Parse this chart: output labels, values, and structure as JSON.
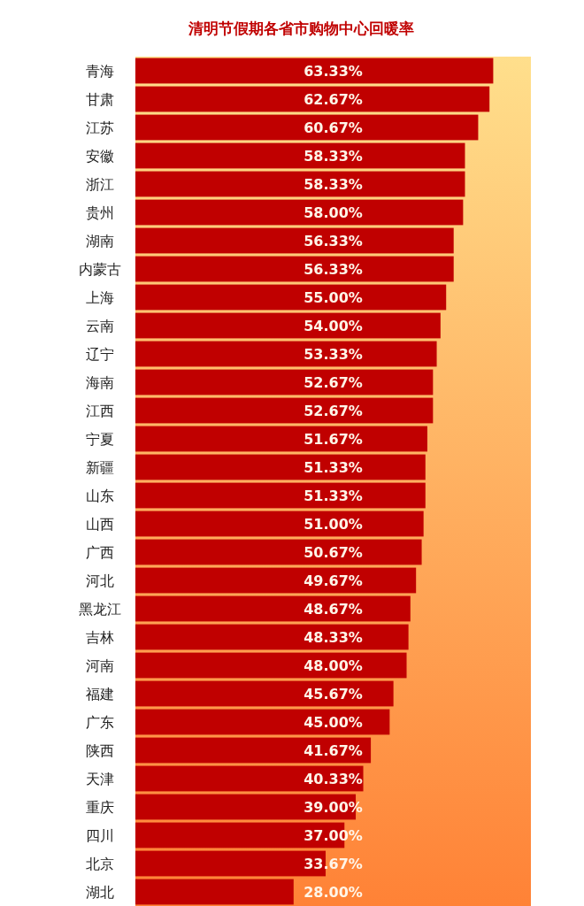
{
  "chart_data": {
    "type": "bar",
    "orientation": "horizontal",
    "title": "清明节假期各省市购物中心回暖率",
    "categories": [
      "青海",
      "甘肃",
      "江苏",
      "安徽",
      "浙江",
      "贵州",
      "湖南",
      "内蒙古",
      "上海",
      "云南",
      "辽宁",
      "海南",
      "江西",
      "宁夏",
      "新疆",
      "山东",
      "山西",
      "广西",
      "河北",
      "黑龙江",
      "吉林",
      "河南",
      "福建",
      "广东",
      "陕西",
      "天津",
      "重庆",
      "四川",
      "北京",
      "湖北"
    ],
    "values": [
      63.33,
      62.67,
      60.67,
      58.33,
      58.33,
      58.0,
      56.33,
      56.33,
      55.0,
      54.0,
      53.33,
      52.67,
      52.67,
      51.67,
      51.33,
      51.33,
      51.0,
      50.67,
      49.67,
      48.67,
      48.33,
      48.0,
      45.67,
      45.0,
      41.67,
      40.33,
      39.0,
      37.0,
      33.67,
      28.0
    ],
    "value_labels": [
      "63.33%",
      "62.67%",
      "60.67%",
      "58.33%",
      "58.33%",
      "58.00%",
      "56.33%",
      "56.33%",
      "55.00%",
      "54.00%",
      "53.33%",
      "52.67%",
      "52.67%",
      "51.67%",
      "51.33%",
      "51.33%",
      "51.00%",
      "50.67%",
      "49.67%",
      "48.67%",
      "48.33%",
      "48.00%",
      "45.67%",
      "45.00%",
      "41.67%",
      "40.33%",
      "39.00%",
      "37.00%",
      "33.67%",
      "28.00%"
    ],
    "color": "#c00000",
    "xlim": [
      0,
      70
    ],
    "tick_labels": "y"
  }
}
